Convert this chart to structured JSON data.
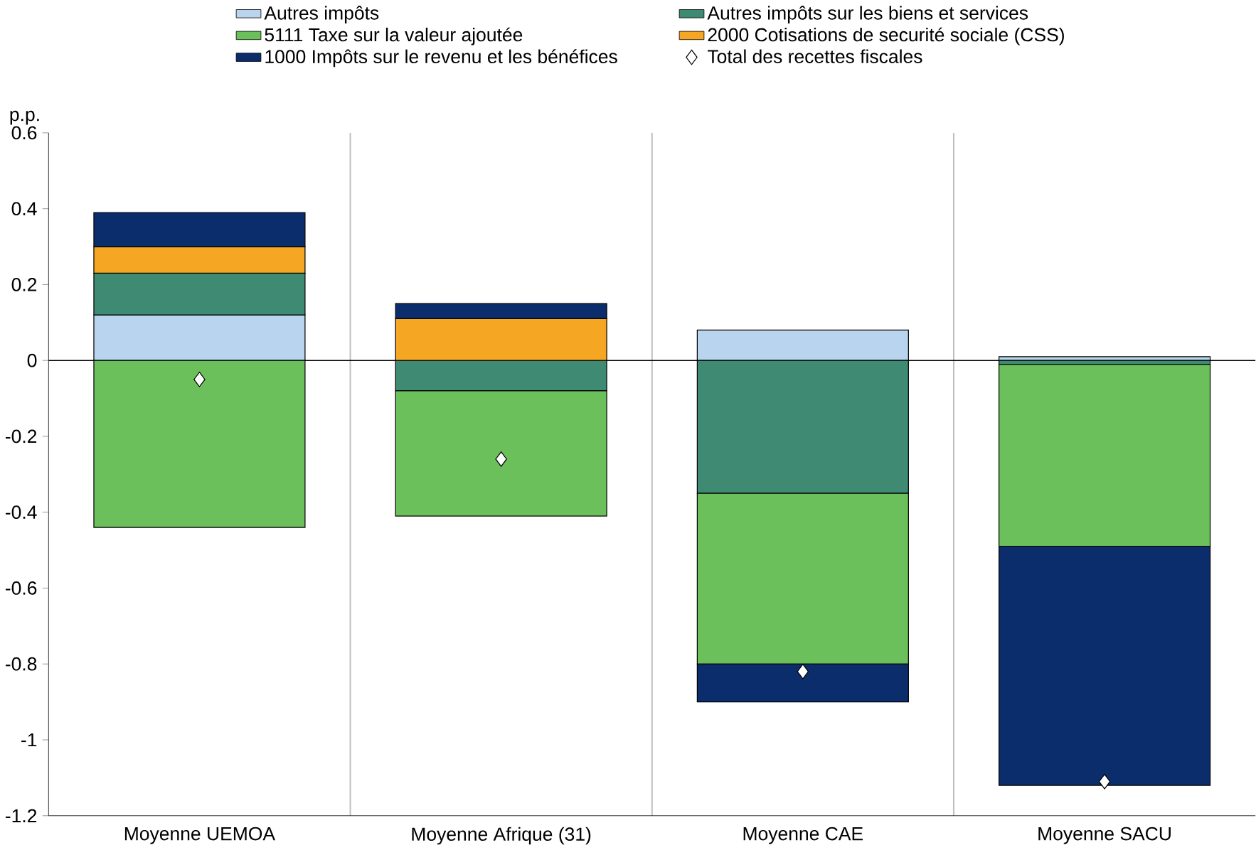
{
  "chart_data": {
    "type": "bar",
    "stacked": true,
    "ylabel": "p.p.",
    "categories": [
      "Moyenne UEMOA",
      "Moyenne Afrique (31)",
      "Moyenne CAE",
      "Moyenne SACU"
    ],
    "ylim": [
      -1.2,
      0.6
    ],
    "yticks": [
      -1.2,
      -1,
      -0.8,
      -0.6,
      -0.4,
      -0.2,
      0,
      0.2,
      0.4,
      0.6
    ],
    "grid": false,
    "legend": "top",
    "series": [
      {
        "name": "Autres impôts",
        "color": "#b9d4ee",
        "values": [
          0.12,
          0,
          0.08,
          0.01
        ]
      },
      {
        "name": "Autres impôts sur les biens et services",
        "color": "#3f8a72",
        "values": [
          0.11,
          -0.08,
          -0.35,
          -0.01
        ]
      },
      {
        "name": "5111 Taxe sur la valeur ajoutée",
        "color": "#6cc05c",
        "values": [
          -0.44,
          -0.33,
          -0.45,
          -0.48
        ]
      },
      {
        "name": "2000 Cotisations de securité sociale (CSS)",
        "color": "#f5a623",
        "values": [
          0.07,
          0.11,
          0,
          0
        ]
      },
      {
        "name": "1000 Impôts sur le revenu et les bénéfices",
        "color": "#0b2d6b",
        "values": [
          0.09,
          0.04,
          -0.1,
          -0.63
        ]
      },
      {
        "name": "Total des recettes fiscales",
        "type": "scatter",
        "marker": "diamond",
        "color": "#ffffff",
        "values": [
          -0.05,
          -0.26,
          -0.82,
          -1.11
        ]
      }
    ]
  }
}
